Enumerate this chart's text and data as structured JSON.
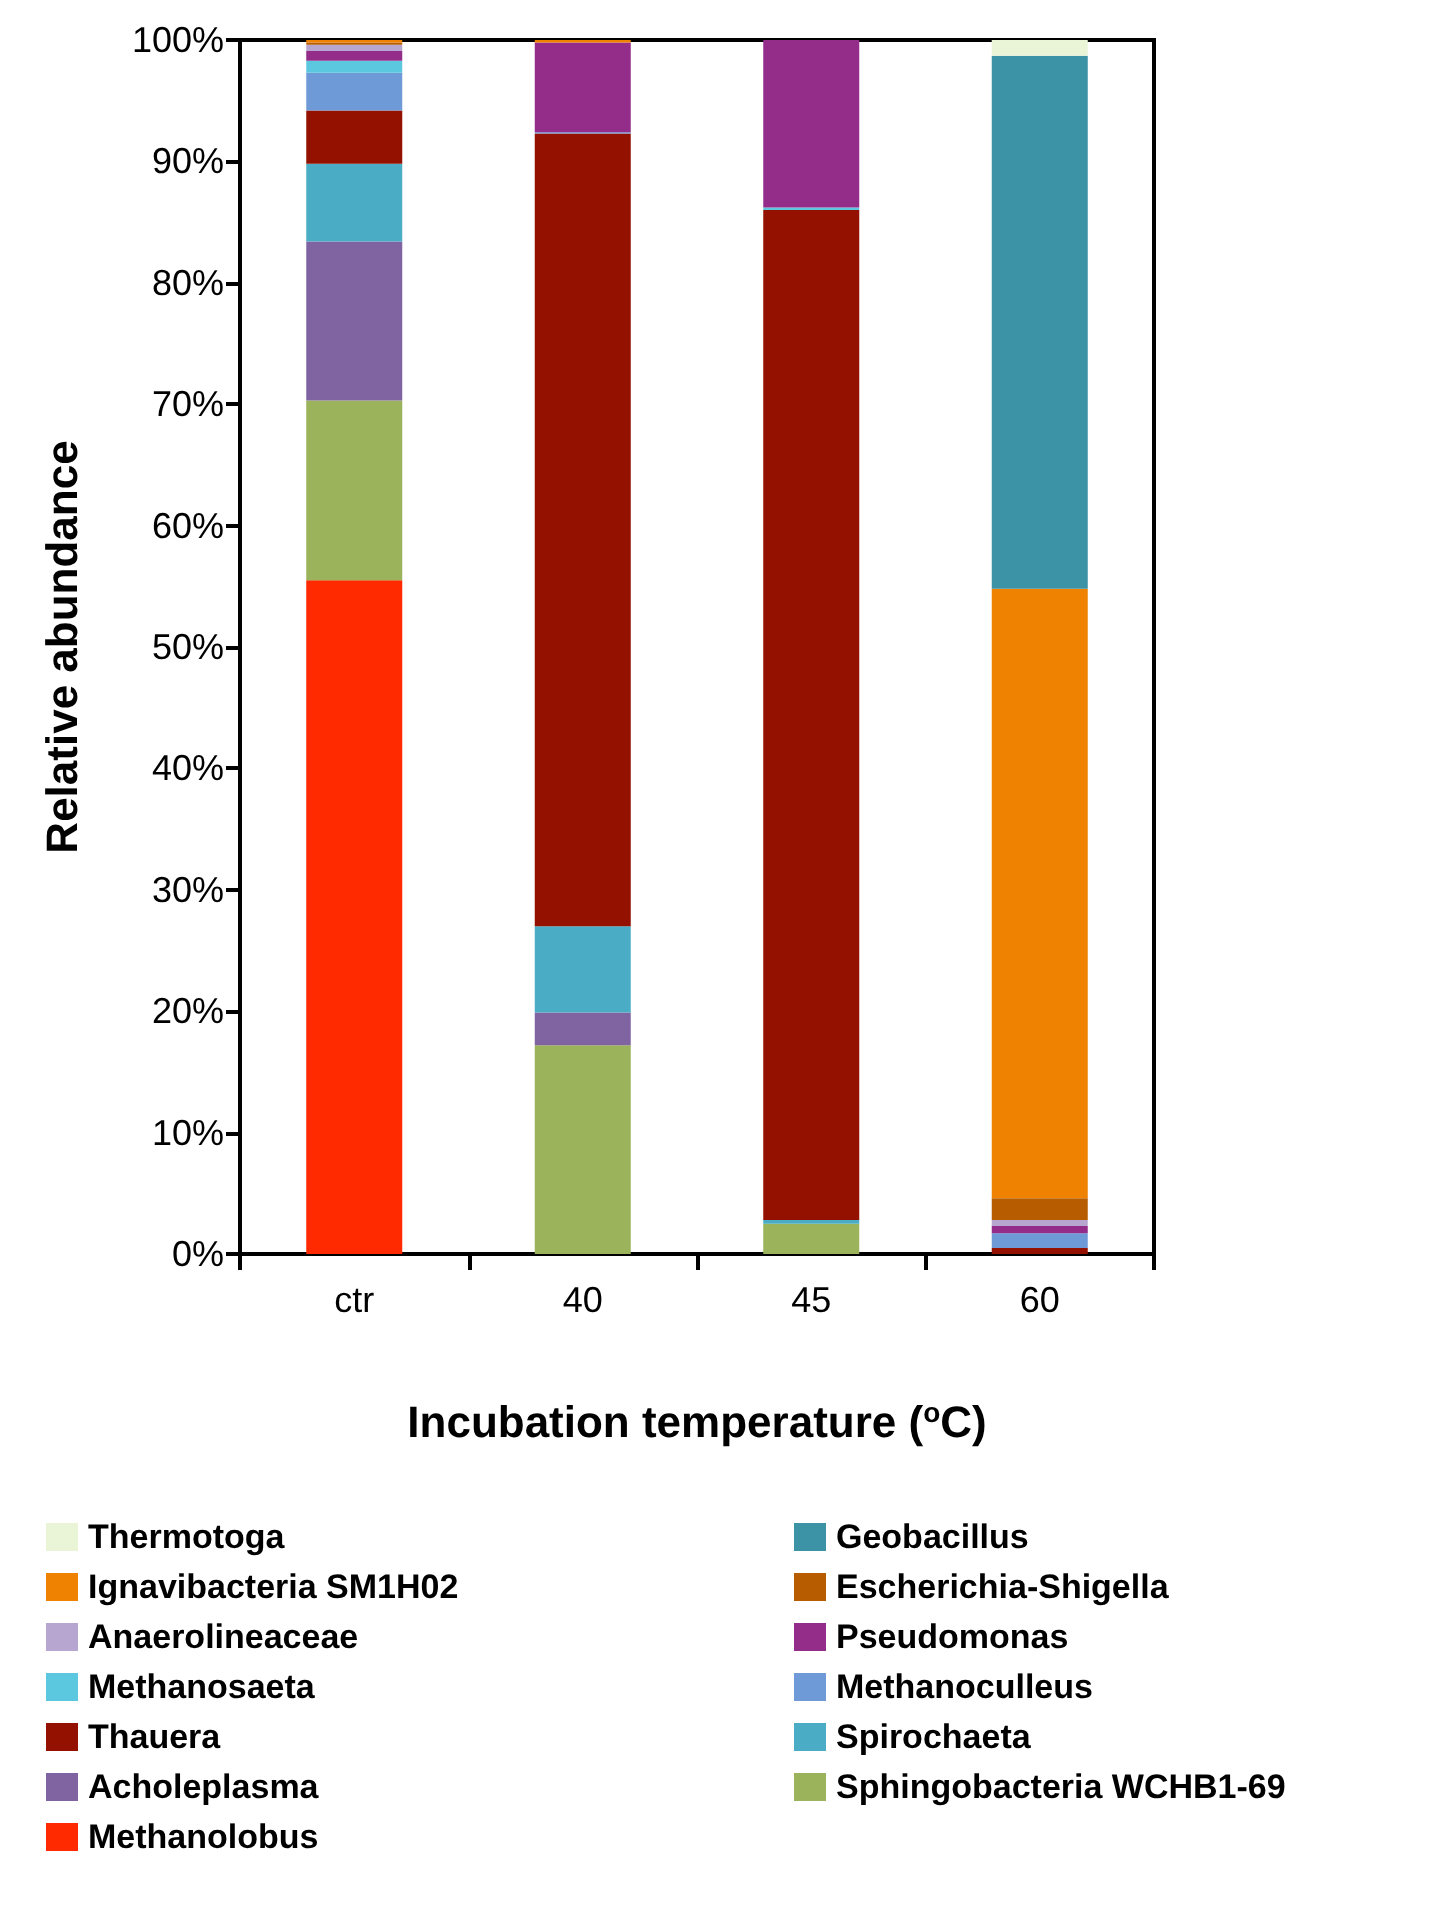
{
  "chart_data": {
    "type": "bar",
    "stacked": true,
    "xlabel": "Incubation temperature ($^{o}$C)",
    "ylabel": "Relative abundance",
    "categories": [
      "ctr",
      "40",
      "45",
      "60"
    ],
    "ylim": [
      0,
      100
    ],
    "yticks": [
      {
        "value": 0,
        "label": "0%"
      },
      {
        "value": 10,
        "label": "10%"
      },
      {
        "value": 20,
        "label": "20%"
      },
      {
        "value": 30,
        "label": "30%"
      },
      {
        "value": 40,
        "label": "40%"
      },
      {
        "value": 50,
        "label": "50%"
      },
      {
        "value": 60,
        "label": "60%"
      },
      {
        "value": 70,
        "label": "70%"
      },
      {
        "value": 80,
        "label": "80%"
      },
      {
        "value": 90,
        "label": "90%"
      },
      {
        "value": 100,
        "label": "100%"
      }
    ],
    "grid": false,
    "legend": "bottom",
    "series": [
      {
        "name": "Methanolobus",
        "color": "#ff2a00",
        "values": [
          55.5,
          0,
          0,
          0
        ]
      },
      {
        "name": "Sphingobacteria WCHB1-69",
        "color": "#9bb35a",
        "values": [
          14.8,
          17.2,
          2.5,
          0
        ]
      },
      {
        "name": "Acholeplasma",
        "color": "#8064a2",
        "values": [
          13.1,
          2.7,
          0,
          0
        ]
      },
      {
        "name": "Spirochaeta",
        "color": "#4bacc6",
        "values": [
          6.4,
          7.1,
          0.3,
          0
        ]
      },
      {
        "name": "Thauera",
        "color": "#941100",
        "values": [
          4.4,
          65.3,
          83.2,
          0.5
        ]
      },
      {
        "name": "Methanoculleus",
        "color": "#6f9ad8",
        "values": [
          3.1,
          0.1,
          0,
          1.2
        ]
      },
      {
        "name": "Methanosaeta",
        "color": "#5bc8e0",
        "values": [
          1.0,
          0,
          0.2,
          0
        ]
      },
      {
        "name": "Pseudomonas",
        "color": "#942c8a",
        "values": [
          0.8,
          7.4,
          13.8,
          0.6
        ]
      },
      {
        "name": "Anaerolineaceae",
        "color": "#b7a6d0",
        "values": [
          0.5,
          0,
          0,
          0.5
        ]
      },
      {
        "name": "Escherichia-Shigella",
        "color": "#b85c00",
        "values": [
          0.2,
          0,
          0,
          1.8
        ]
      },
      {
        "name": "Ignavibacteria SM1H02",
        "color": "#ef8200",
        "values": [
          0.2,
          0.2,
          0,
          50.2
        ]
      },
      {
        "name": "Geobacillus",
        "color": "#3d93a6",
        "values": [
          0,
          0,
          0,
          43.9
        ]
      },
      {
        "name": "Thermotoga",
        "color": "#eaf5d8",
        "values": [
          0,
          0,
          0,
          1.3
        ]
      }
    ]
  }
}
